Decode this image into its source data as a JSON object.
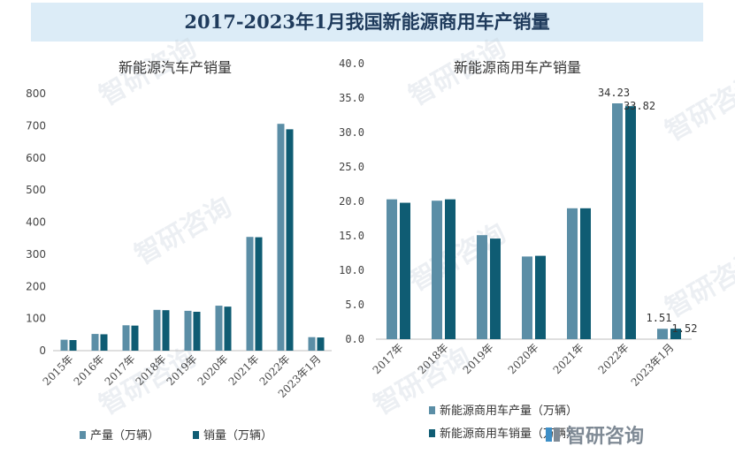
{
  "header": {
    "title": "2017-2023年1月我国新能源商用车产销量"
  },
  "colors": {
    "production": "#5b8ea6",
    "sales": "#0f5c73",
    "banner": "#dcecf7"
  },
  "watermark": {
    "text": "智研咨询"
  },
  "brand": {
    "text": "智研咨询"
  },
  "chart_data": [
    {
      "type": "bar",
      "title": "新能源汽车产销量",
      "categories": [
        "2015年",
        "2016年",
        "2017年",
        "2018年",
        "2019年",
        "2020年",
        "2021年",
        "2022年",
        "2023年1月"
      ],
      "series": [
        {
          "name": "产量（万辆）",
          "values": [
            34,
            52,
            79,
            127,
            124,
            140,
            354,
            706,
            42
          ]
        },
        {
          "name": "销量（万辆）",
          "values": [
            33,
            51,
            78,
            126,
            121,
            137,
            353,
            689,
            41
          ]
        }
      ],
      "ylim": [
        0,
        800
      ],
      "yticks": [
        "0",
        "100",
        "200",
        "300",
        "400",
        "500",
        "600",
        "700",
        "800"
      ],
      "grid": false,
      "legend": "bottom"
    },
    {
      "type": "bar",
      "title": "新能源商用车产销量",
      "categories": [
        "2017年",
        "2018年",
        "2019年",
        "2020年",
        "2021年",
        "2022年",
        "2023年1月"
      ],
      "series": [
        {
          "name": "新能源商用车产量（万辆）",
          "values": [
            20.3,
            20.1,
            15.1,
            12.0,
            19.0,
            34.23,
            1.51
          ]
        },
        {
          "name": "新能源商用车销量（万辆）",
          "values": [
            19.8,
            20.3,
            14.6,
            12.1,
            19.0,
            33.82,
            1.52
          ]
        }
      ],
      "data_labels": [
        {
          "series": 0,
          "index": 5,
          "text": "34.23"
        },
        {
          "series": 1,
          "index": 5,
          "text": "33.82"
        },
        {
          "series": 0,
          "index": 6,
          "text": "1.51"
        },
        {
          "series": 1,
          "index": 6,
          "text": "1.52"
        }
      ],
      "ylim": [
        0,
        40
      ],
      "yticks": [
        "0.0",
        "5.0",
        "10.0",
        "15.0",
        "20.0",
        "25.0",
        "30.0",
        "35.0",
        "40.0"
      ],
      "grid": false,
      "legend": "bottom"
    }
  ]
}
